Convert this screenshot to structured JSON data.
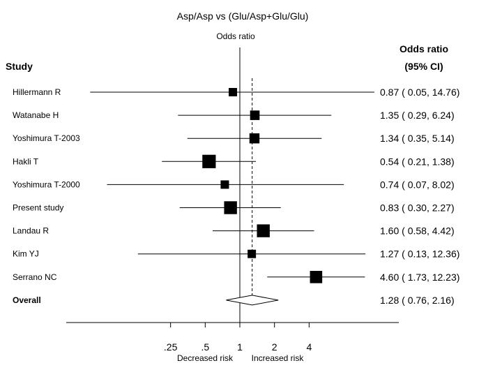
{
  "chart_data": {
    "type": "forest",
    "title": "Asp/Asp vs (Glu/Asp+Glu/Glu)",
    "subtitle": "Odds ratio",
    "left_header": "Study",
    "right_header_line1": "Odds ratio",
    "right_header_line2": "(95% CI)",
    "x_scale": "log",
    "xlim": [
      0.1,
      19
    ],
    "x_ticks": [
      0.25,
      0.5,
      1,
      2,
      4
    ],
    "x_tick_labels": [
      ".25",
      ".5",
      "1",
      "2",
      "4"
    ],
    "xlabel_left": "Decreased risk",
    "xlabel_right": "Increased risk",
    "pooled_estimate": 1.28,
    "studies": [
      {
        "name": "Hillermann R",
        "or": 0.87,
        "lo": 0.05,
        "hi": 14.76,
        "ci_text": "0.87 ( 0.05, 14.76)",
        "weight": 0.5
      },
      {
        "name": "Watanabe H",
        "or": 1.35,
        "lo": 0.29,
        "hi": 6.24,
        "ci_text": "1.35 ( 0.29, 6.24)",
        "weight": 0.7
      },
      {
        "name": "Yoshimura T-2003",
        "or": 1.34,
        "lo": 0.35,
        "hi": 5.14,
        "ci_text": "1.34 ( 0.35, 5.14)",
        "weight": 0.8
      },
      {
        "name": "Hakli T",
        "or": 0.54,
        "lo": 0.21,
        "hi": 1.38,
        "ci_text": "0.54 ( 0.21, 1.38)",
        "weight": 1.4
      },
      {
        "name": "Yoshimura T-2000",
        "or": 0.74,
        "lo": 0.07,
        "hi": 8.02,
        "ci_text": "0.74 ( 0.07, 8.02)",
        "weight": 0.5
      },
      {
        "name": "Present study",
        "or": 0.83,
        "lo": 0.3,
        "hi": 2.27,
        "ci_text": "0.83 ( 0.30, 2.27)",
        "weight": 1.3
      },
      {
        "name": "Landau R",
        "or": 1.6,
        "lo": 0.58,
        "hi": 4.42,
        "ci_text": "1.60 ( 0.58, 4.42)",
        "weight": 1.3
      },
      {
        "name": "Kim YJ",
        "or": 1.27,
        "lo": 0.13,
        "hi": 12.36,
        "ci_text": "1.27 ( 0.13, 12.36)",
        "weight": 0.5
      },
      {
        "name": "Serrano NC",
        "or": 4.6,
        "lo": 1.73,
        "hi": 12.23,
        "ci_text": "4.60 ( 1.73, 12.23)",
        "weight": 1.2
      }
    ],
    "overall": {
      "name": "Overall",
      "or": 1.28,
      "lo": 0.76,
      "hi": 2.16,
      "ci_text": "1.28 ( 0.76, 2.16)"
    }
  }
}
